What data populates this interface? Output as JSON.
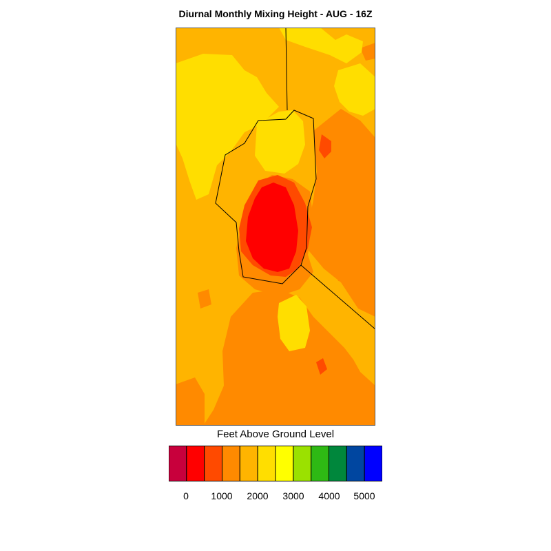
{
  "title": "Diurnal Monthly Mixing Height - AUG - 16Z",
  "legend": {
    "title": "Feet Above Ground Level",
    "colors": [
      "#c8003c",
      "#ff0000",
      "#ff4a00",
      "#ff8a00",
      "#ffb400",
      "#ffde00",
      "#ffff00",
      "#9be100",
      "#2eb914",
      "#00873c",
      "#0046a0",
      "#0000ff"
    ],
    "ticks": [
      "0",
      "1000",
      "2000",
      "3000",
      "4000",
      "5000"
    ]
  },
  "palette": {
    "light_orange": "#ffb400",
    "yellow": "#ffde00",
    "orange": "#ff8a00",
    "red_orange": "#ff4a00",
    "red": "#ff0000"
  }
}
